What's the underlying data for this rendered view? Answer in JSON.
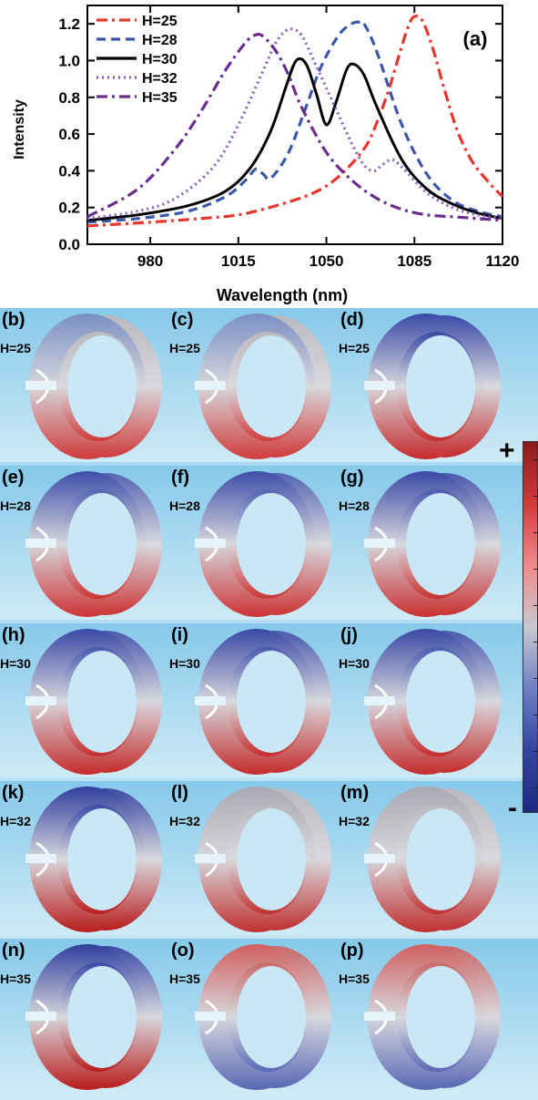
{
  "chart_data": {
    "type": "line",
    "panel_label": "(a)",
    "xlabel": "Wavelength (nm)",
    "ylabel": "Intensity",
    "xlim": [
      955,
      1120
    ],
    "ylim": [
      0,
      1.3
    ],
    "xticks": [
      980,
      1015,
      1050,
      1085,
      1120
    ],
    "xtick_labels": [
      "980",
      "1015",
      "1050",
      "1085",
      "1120"
    ],
    "yticks": [
      0.0,
      0.2,
      0.4,
      0.6,
      0.8,
      1.0,
      1.2
    ],
    "ytick_labels": [
      "0.0",
      "0.2",
      "0.4",
      "0.6",
      "0.8",
      "1.0",
      "1.2"
    ],
    "legend_position": "top-left",
    "series": [
      {
        "name": "H=25",
        "color": "#e8362e",
        "dash": "dashdot",
        "x": [
          955,
          980,
          1000,
          1015,
          1030,
          1045,
          1055,
          1065,
          1070,
          1075,
          1080,
          1083,
          1085,
          1088,
          1092,
          1097,
          1102,
          1108,
          1115,
          1120
        ],
        "y": [
          0.1,
          0.12,
          0.14,
          0.16,
          0.21,
          0.28,
          0.37,
          0.52,
          0.66,
          0.85,
          1.08,
          1.2,
          1.24,
          1.22,
          1.08,
          0.84,
          0.62,
          0.45,
          0.33,
          0.26
        ]
      },
      {
        "name": "H=28",
        "color": "#3b57a8",
        "dash": "dash",
        "x": [
          955,
          975,
          995,
          1010,
          1018,
          1022,
          1025,
          1028,
          1035,
          1042,
          1048,
          1055,
          1060,
          1063,
          1065,
          1070,
          1080,
          1090,
          1100,
          1110,
          1120
        ],
        "y": [
          0.12,
          0.14,
          0.18,
          0.26,
          0.35,
          0.41,
          0.38,
          0.36,
          0.5,
          0.75,
          0.97,
          1.14,
          1.2,
          1.21,
          1.2,
          1.05,
          0.65,
          0.38,
          0.24,
          0.18,
          0.15
        ]
      },
      {
        "name": "H=30",
        "color": "#000000",
        "dash": "solid",
        "x": [
          955,
          975,
          995,
          1010,
          1020,
          1028,
          1034,
          1038,
          1042,
          1046,
          1050,
          1054,
          1058,
          1061,
          1065,
          1070,
          1080,
          1090,
          1100,
          1110,
          1120
        ],
        "y": [
          0.13,
          0.16,
          0.21,
          0.29,
          0.42,
          0.62,
          0.86,
          1.0,
          0.98,
          0.82,
          0.65,
          0.78,
          0.95,
          0.98,
          0.92,
          0.75,
          0.46,
          0.3,
          0.22,
          0.17,
          0.14
        ]
      },
      {
        "name": "H=32",
        "color": "#8a60b8",
        "dash": "dot",
        "x": [
          955,
          975,
          990,
          1005,
          1015,
          1025,
          1030,
          1035,
          1040,
          1045,
          1050,
          1055,
          1060,
          1065,
          1069,
          1072,
          1076,
          1080,
          1090,
          1100,
          1110,
          1120
        ],
        "y": [
          0.14,
          0.18,
          0.25,
          0.42,
          0.65,
          0.95,
          1.1,
          1.17,
          1.14,
          1.0,
          0.85,
          0.7,
          0.55,
          0.43,
          0.4,
          0.43,
          0.46,
          0.42,
          0.28,
          0.2,
          0.16,
          0.14
        ]
      },
      {
        "name": "H=35",
        "color": "#6a2d8e",
        "dash": "dashdot",
        "x": [
          955,
          975,
          990,
          1000,
          1010,
          1018,
          1022,
          1025,
          1030,
          1035,
          1040,
          1050,
          1060,
          1070,
          1080,
          1090,
          1100,
          1110,
          1120
        ],
        "y": [
          0.15,
          0.3,
          0.52,
          0.72,
          0.95,
          1.1,
          1.14,
          1.13,
          1.05,
          0.92,
          0.75,
          0.5,
          0.35,
          0.25,
          0.19,
          0.16,
          0.15,
          0.14,
          0.13
        ]
      }
    ]
  },
  "field_maps": {
    "rows": [
      {
        "h_label": "H=25",
        "panels": [
          {
            "letter": "(b)",
            "top": "#7a8fc2",
            "bottom": "#cf3a3a",
            "right": "#b8b8be"
          },
          {
            "letter": "(c)",
            "top": "#7c90c4",
            "bottom": "#d03c3c",
            "right": "#b9b9bf"
          },
          {
            "letter": "(d)",
            "top": "#3b4aa8",
            "bottom": "#c52a2a",
            "right": "#3b4aa8"
          }
        ]
      },
      {
        "h_label": "H=28",
        "panels": [
          {
            "letter": "(e)",
            "top": "#3e4ea9",
            "bottom": "#cc3434",
            "right": "#5565b2"
          },
          {
            "letter": "(f)",
            "top": "#3e4ea9",
            "bottom": "#cc3434",
            "right": "#5565b2"
          },
          {
            "letter": "(g)",
            "top": "#3a49a6",
            "bottom": "#c83030",
            "right": "#4a5aae"
          }
        ]
      },
      {
        "h_label": "H=30",
        "panels": [
          {
            "letter": "(h)",
            "top": "#3a49a6",
            "bottom": "#c52c2c",
            "right": "#4a5aae"
          },
          {
            "letter": "(i)",
            "top": "#3a49a6",
            "bottom": "#c52c2c",
            "right": "#4a5aae"
          },
          {
            "letter": "(j)",
            "top": "#3a49a6",
            "bottom": "#c52c2c",
            "right": "#4a5aae"
          }
        ]
      },
      {
        "h_label": "H=32",
        "panels": [
          {
            "letter": "(k)",
            "top": "#2f3e9e",
            "bottom": "#b81c1c",
            "right": "#3b4aa6"
          },
          {
            "letter": "(l)",
            "top": "#a9a9b2",
            "bottom": "#c03030",
            "right": "#b9b9bf"
          },
          {
            "letter": "(m)",
            "top": "#a9a9b2",
            "bottom": "#c03030",
            "right": "#b9b9bf"
          }
        ]
      },
      {
        "h_label": "H=35",
        "panels": [
          {
            "letter": "(n)",
            "top": "#2f3e9e",
            "bottom": "#b81c1c",
            "right": "#3b4aa6"
          },
          {
            "letter": "(o)",
            "top": "#d06060",
            "bottom": "#5a68b5",
            "right": "#c96a6a"
          },
          {
            "letter": "(p)",
            "top": "#d06060",
            "bottom": "#5a68b5",
            "right": "#c96a6a"
          }
        ]
      }
    ]
  },
  "colorbar": {
    "plus_label": "+",
    "minus_label": "-",
    "colors": [
      "#8b1a1a",
      "#d23a3a",
      "#ef8a8a",
      "#c8c8d0",
      "#6e7fc4",
      "#3444a0",
      "#1e2a80"
    ]
  }
}
